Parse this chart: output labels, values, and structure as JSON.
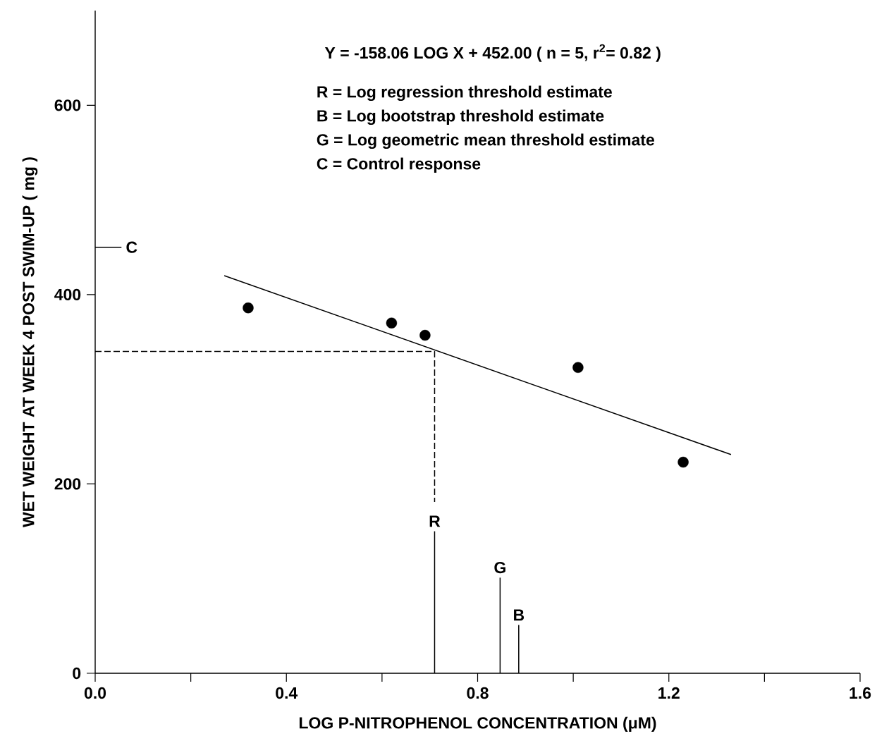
{
  "chart_data": {
    "type": "scatter",
    "xlabel": "LOG   P-NITROPHENOL CONCENTRATION (μM)",
    "ylabel": "WET WEIGHT AT WEEK 4 POST SWIM-UP ( mg )",
    "annotations": [
      "Y = -158.06 LOG X + 452.00 ( n = 5, r$^{2}$= 0.82 )",
      "R = Log regression threshold estimate",
      "B = Log bootstrap threshold estimate",
      "G = Log geometric mean threshold estimate",
      "C = Control response"
    ],
    "xlim": [
      0,
      1.6
    ],
    "ylim": [
      0,
      700
    ],
    "xticks": [
      {
        "value": 0,
        "label": "0.0"
      },
      {
        "value": 0.2,
        "label": null
      },
      {
        "value": 0.4,
        "label": "0.4"
      },
      {
        "value": 0.6,
        "label": null
      },
      {
        "value": 0.8,
        "label": "0.8"
      },
      {
        "value": 1.0,
        "label": null
      },
      {
        "value": 1.2,
        "label": "1.2"
      },
      {
        "value": 1.4,
        "label": null
      },
      {
        "value": 1.6,
        "label": "1.6"
      }
    ],
    "yticks": [
      0,
      200,
      400,
      600
    ],
    "grid": false,
    "series": [
      {
        "color": "#000000",
        "marker": "circle",
        "x": [
          0.32,
          0.62,
          0.69,
          1.01,
          1.23
        ],
        "values": [
          386,
          370,
          357,
          323,
          223
        ]
      },
      {
        "type": "line",
        "color": "#000000",
        "line_style": "solid",
        "marker": "none",
        "x": [
          0.27,
          1.33
        ],
        "values": [
          420,
          231
        ]
      },
      {
        "type": "line",
        "color": "#000000",
        "line_style": "dashed",
        "marker": "none",
        "x": [
          0,
          0.71,
          0.71
        ],
        "values": [
          340,
          340,
          181
        ]
      },
      {
        "type": "line",
        "name": "R",
        "color": "#000000",
        "line_style": "solid",
        "marker": "none",
        "x": [
          0.71,
          0.71
        ],
        "values": [
          0,
          150
        ]
      },
      {
        "type": "line",
        "name": "G",
        "color": "#000000",
        "line_style": "solid",
        "marker": "none",
        "x": [
          0.847,
          0.847
        ],
        "values": [
          0,
          101
        ]
      },
      {
        "type": "line",
        "name": "B",
        "color": "#000000",
        "line_style": "solid",
        "marker": "none",
        "x": [
          0.886,
          0.886
        ],
        "values": [
          0,
          51
        ]
      },
      {
        "type": "line",
        "name": "C",
        "color": "#000000",
        "line_style": "solid",
        "marker": "none",
        "x": [
          0,
          0.055
        ],
        "values": [
          450,
          450
        ]
      }
    ]
  }
}
